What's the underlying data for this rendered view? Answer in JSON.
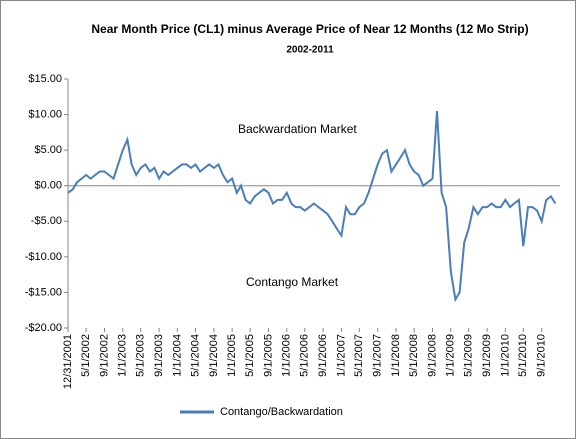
{
  "chart_data": {
    "type": "line",
    "title": "Near Month Price (CL1) minus Average Price of Near 12 Months (12 Mo Strip)",
    "subtitle": "2002-2011",
    "annotations": [
      "Backwardation Market",
      "Contango Market"
    ],
    "x": [
      "1/1/2002",
      "2/1/2002",
      "3/1/2002",
      "4/1/2002",
      "5/1/2002",
      "6/1/2002",
      "7/1/2002",
      "8/1/2002",
      "9/1/2002",
      "10/1/2002",
      "11/1/2002",
      "12/1/2002",
      "1/1/2003",
      "2/1/2003",
      "3/1/2003",
      "4/1/2003",
      "5/1/2003",
      "6/1/2003",
      "7/1/2003",
      "8/1/2003",
      "9/1/2003",
      "10/1/2003",
      "11/1/2003",
      "12/1/2003",
      "1/1/2004",
      "2/1/2004",
      "3/1/2004",
      "4/1/2004",
      "5/1/2004",
      "6/1/2004",
      "7/1/2004",
      "8/1/2004",
      "9/1/2004",
      "10/1/2004",
      "11/1/2004",
      "12/1/2004",
      "1/1/2005",
      "2/1/2005",
      "3/1/2005",
      "4/1/2005",
      "5/1/2005",
      "6/1/2005",
      "7/1/2005",
      "8/1/2005",
      "9/1/2005",
      "10/1/2005",
      "11/1/2005",
      "12/1/2005",
      "1/1/2006",
      "2/1/2006",
      "3/1/2006",
      "4/1/2006",
      "5/1/2006",
      "6/1/2006",
      "7/1/2006",
      "8/1/2006",
      "9/1/2006",
      "10/1/2006",
      "11/1/2006",
      "12/1/2006",
      "1/1/2007",
      "2/1/2007",
      "3/1/2007",
      "4/1/2007",
      "5/1/2007",
      "6/1/2007",
      "7/1/2007",
      "8/1/2007",
      "9/1/2007",
      "10/1/2007",
      "11/1/2007",
      "12/1/2007",
      "1/1/2008",
      "2/1/2008",
      "3/1/2008",
      "4/1/2008",
      "5/1/2008",
      "6/1/2008",
      "7/1/2008",
      "8/1/2008",
      "9/1/2008",
      "10/1/2008",
      "11/1/2008",
      "12/1/2008",
      "1/1/2009",
      "2/1/2009",
      "3/1/2009",
      "4/1/2009",
      "5/1/2009",
      "6/1/2009",
      "7/1/2009",
      "8/1/2009",
      "9/1/2009",
      "10/1/2009",
      "11/1/2009",
      "12/1/2009",
      "1/1/2010",
      "2/1/2010",
      "3/1/2010",
      "4/1/2010",
      "5/1/2010",
      "6/1/2010",
      "7/1/2010",
      "8/1/2010",
      "9/1/2010",
      "10/1/2010",
      "11/1/2010",
      "12/1/2010"
    ],
    "series": [
      {
        "name": "Contango/Backwardation",
        "color": "#4a7ebb",
        "values": [
          -1,
          -0.5,
          0.5,
          1,
          1.5,
          1,
          1.5,
          2,
          2,
          1.5,
          1,
          3,
          5,
          6.5,
          3,
          1.5,
          2.5,
          3,
          2,
          2.5,
          1,
          2,
          1.5,
          2,
          2.5,
          3,
          3,
          2.5,
          3,
          2,
          2.5,
          3,
          2.5,
          3,
          1.5,
          0.5,
          1,
          -1,
          0,
          -2,
          -2.5,
          -1.5,
          -1,
          -0.5,
          -1,
          -2.5,
          -2,
          -2,
          -1,
          -2.5,
          -3,
          -3,
          -3.5,
          -3,
          -2.5,
          -3,
          -3.5,
          -4,
          -5,
          -6,
          -7,
          -3,
          -4,
          -4,
          -3,
          -2.5,
          -1,
          1,
          3,
          4.5,
          5,
          2,
          3,
          4,
          5,
          3,
          2,
          1.5,
          0,
          0.5,
          1,
          10.5,
          -1,
          -3,
          -12,
          -16,
          -15,
          -8,
          -6,
          -3,
          -4,
          -3,
          -3,
          -2.5,
          -3,
          -3,
          -2,
          -3,
          -2.5,
          -2,
          -8.5,
          -3,
          -3,
          -3.5,
          -5,
          -2,
          -1.5,
          -2.5
        ]
      }
    ],
    "xlim": [
      "12/31/2001",
      "1/1/2011"
    ],
    "xticks": [
      "12/31/2001",
      "5/1/2002",
      "9/1/2002",
      "1/1/2003",
      "5/1/2003",
      "9/1/2003",
      "1/1/2004",
      "5/1/2004",
      "9/1/2004",
      "1/1/2005",
      "5/1/2005",
      "9/1/2005",
      "1/1/2006",
      "5/1/2006",
      "9/1/2006",
      "1/1/2007",
      "5/1/2007",
      "9/1/2007",
      "1/1/2008",
      "5/1/2008",
      "9/1/2008",
      "1/1/2009",
      "5/1/2009",
      "9/1/2009",
      "1/1/2010",
      "5/1/2010",
      "9/1/2010"
    ],
    "ylim": [
      -20,
      15
    ],
    "yticks": [
      {
        "value": -20,
        "label": "-$20.00"
      },
      {
        "value": -15,
        "label": "-$15.00"
      },
      {
        "value": -10,
        "label": "-$10.00"
      },
      {
        "value": -5,
        "label": "-$5.00"
      },
      {
        "value": 0,
        "label": "$0.00"
      },
      {
        "value": 5,
        "label": "$5.00"
      },
      {
        "value": 10,
        "label": "$10.00"
      },
      {
        "value": 15,
        "label": "$15.00"
      }
    ],
    "grid": false,
    "legend": "bottom"
  }
}
